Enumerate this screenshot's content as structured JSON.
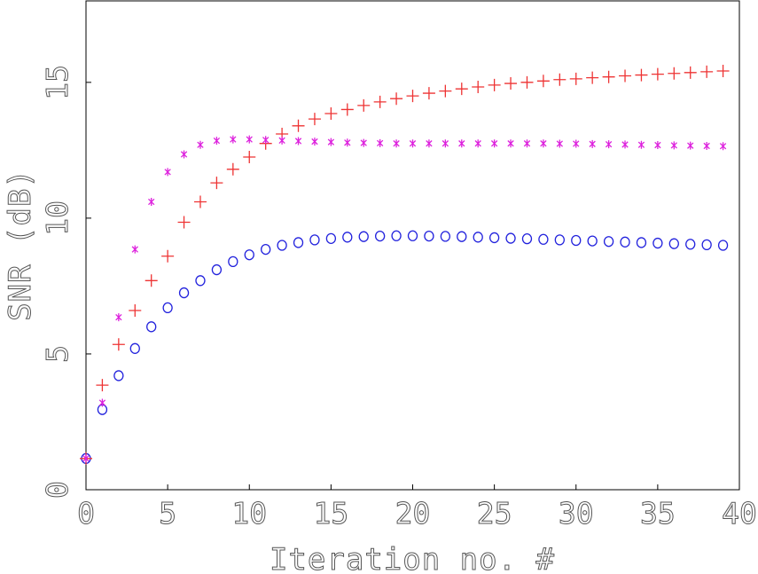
{
  "chart_data": {
    "type": "scatter",
    "title": "",
    "xlabel": "Iteration no. #",
    "ylabel": "SNR (dB)",
    "xlim": [
      0,
      40
    ],
    "ylim": [
      0,
      18
    ],
    "xticks": [
      0,
      5,
      10,
      15,
      20,
      25,
      30,
      35,
      40
    ],
    "yticks": [
      0,
      5,
      10,
      15
    ],
    "grid": false,
    "legend": "none",
    "x": [
      0,
      1,
      2,
      3,
      4,
      5,
      6,
      7,
      8,
      9,
      10,
      11,
      12,
      13,
      14,
      15,
      16,
      17,
      18,
      19,
      20,
      21,
      22,
      23,
      24,
      25,
      26,
      27,
      28,
      29,
      30,
      31,
      32,
      33,
      34,
      35,
      36,
      37,
      38,
      39
    ],
    "series": [
      {
        "marker": "circle",
        "color": "#2222dd",
        "values": [
          1.15,
          2.95,
          4.2,
          5.2,
          6.0,
          6.7,
          7.25,
          7.7,
          8.1,
          8.4,
          8.65,
          8.85,
          9.0,
          9.1,
          9.2,
          9.25,
          9.3,
          9.32,
          9.34,
          9.35,
          9.35,
          9.34,
          9.33,
          9.32,
          9.3,
          9.28,
          9.26,
          9.24,
          9.22,
          9.2,
          9.18,
          9.16,
          9.14,
          9.12,
          9.1,
          9.08,
          9.06,
          9.04,
          9.02,
          9.0
        ]
      },
      {
        "marker": "plus",
        "color": "#ee3333",
        "values": [
          1.15,
          3.85,
          5.35,
          6.6,
          7.7,
          8.6,
          9.85,
          10.6,
          11.3,
          11.8,
          12.25,
          12.75,
          13.1,
          13.4,
          13.65,
          13.85,
          14.0,
          14.15,
          14.28,
          14.4,
          14.5,
          14.6,
          14.68,
          14.76,
          14.83,
          14.9,
          14.96,
          15.0,
          15.05,
          15.1,
          15.13,
          15.17,
          15.2,
          15.24,
          15.27,
          15.3,
          15.33,
          15.36,
          15.39,
          15.42
        ]
      },
      {
        "marker": "asterisk",
        "color": "#dd22dd",
        "values": [
          1.15,
          3.2,
          6.35,
          8.85,
          10.6,
          11.7,
          12.35,
          12.7,
          12.85,
          12.9,
          12.9,
          12.88,
          12.86,
          12.84,
          12.82,
          12.8,
          12.78,
          12.77,
          12.76,
          12.75,
          12.75,
          12.75,
          12.75,
          12.75,
          12.75,
          12.75,
          12.75,
          12.75,
          12.75,
          12.74,
          12.74,
          12.73,
          12.72,
          12.71,
          12.7,
          12.69,
          12.68,
          12.67,
          12.66,
          12.65
        ]
      }
    ]
  }
}
